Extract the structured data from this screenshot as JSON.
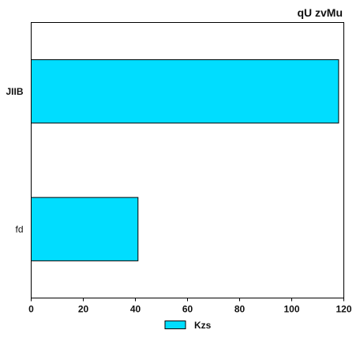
{
  "chart_data": {
    "type": "bar",
    "orientation": "horizontal",
    "title": "qU zvMu",
    "categories": [
      "JIIB",
      "fd"
    ],
    "series": [
      {
        "name": "Kzs",
        "values": [
          118,
          41
        ],
        "color": "#00DDFF"
      }
    ],
    "xlim": [
      0,
      120
    ],
    "xticks": [
      "0",
      "20",
      "40",
      "60",
      "80",
      "100",
      "120"
    ],
    "xlabel": "",
    "ylabel": "",
    "grid": false,
    "legend_position": "bottom-center",
    "category_label_bold": [
      true,
      false
    ]
  }
}
